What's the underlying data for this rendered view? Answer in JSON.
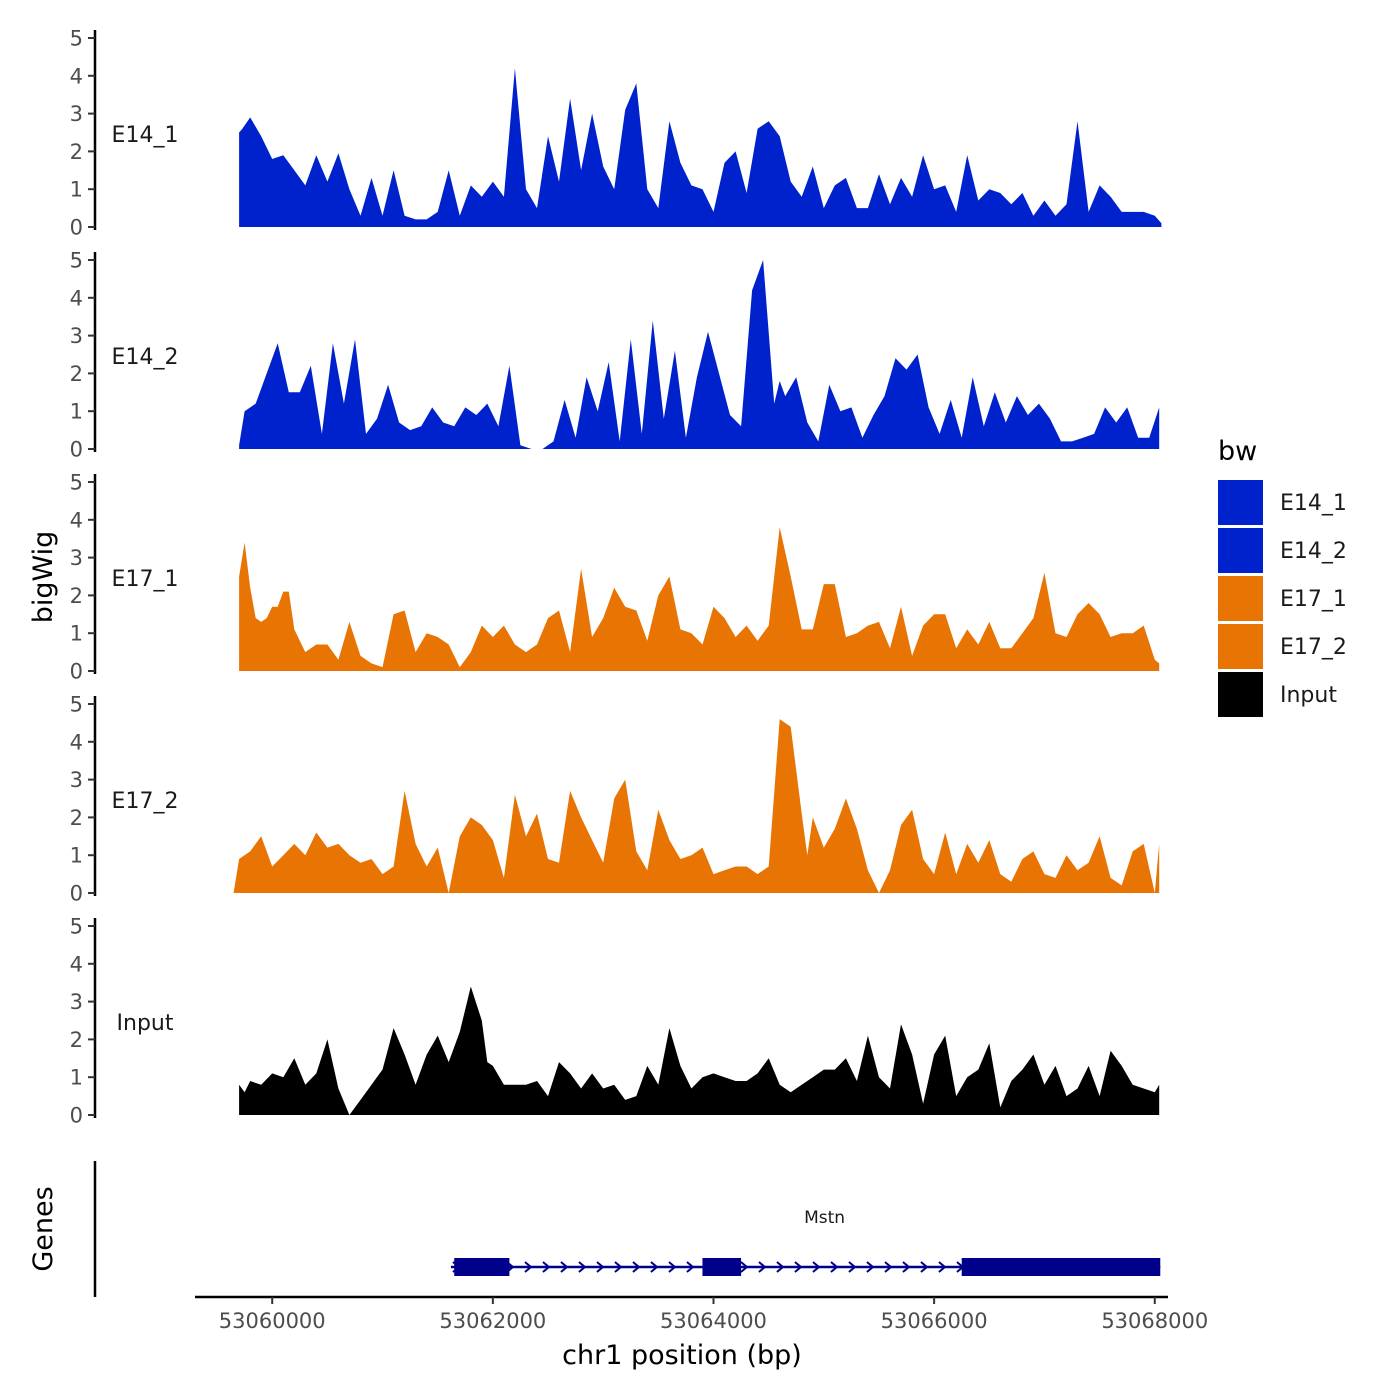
{
  "chart_data": {
    "type": "area",
    "panel_label": "bigWig",
    "gene_panel_label": "Genes",
    "xlabel": "chr1 position (bp)",
    "xlim": [
      53059300,
      53068120
    ],
    "x_ticks": [
      53060000,
      53062000,
      53064000,
      53066000,
      53068000
    ],
    "x_tick_labels": [
      "53060000",
      "53062000",
      "53064000",
      "53066000",
      "53068000"
    ],
    "ylim": [
      0,
      5
    ],
    "y_ticks": [
      0,
      1,
      2,
      3,
      4,
      5
    ],
    "y_tick_labels": [
      "0",
      "1",
      "2",
      "3",
      "4",
      "5"
    ],
    "legend": {
      "title": "bw",
      "entries": [
        {
          "label": "E14_1",
          "color": "#0022CC"
        },
        {
          "label": "E14_2",
          "color": "#0022CC"
        },
        {
          "label": "E17_1",
          "color": "#E87404"
        },
        {
          "label": "E17_2",
          "color": "#E87404"
        },
        {
          "label": "Input",
          "color": "#000000"
        }
      ]
    },
    "series": [
      {
        "name": "E14_1",
        "color": "#0022CC",
        "x": [
          53059700,
          53059730,
          53059800,
          53059900,
          53060000,
          53060100,
          53060200,
          53060300,
          53060400,
          53060500,
          53060600,
          53060700,
          53060800,
          53060900,
          53061000,
          53061100,
          53061200,
          53061300,
          53061400,
          53061500,
          53061600,
          53061700,
          53061800,
          53061900,
          53062000,
          53062100,
          53062200,
          53062300,
          53062400,
          53062500,
          53062600,
          53062700,
          53062800,
          53062900,
          53063000,
          53063100,
          53063200,
          53063300,
          53063400,
          53063500,
          53063600,
          53063700,
          53063800,
          53063900,
          53064000,
          53064100,
          53064200,
          53064300,
          53064400,
          53064500,
          53064600,
          53064700,
          53064800,
          53064900,
          53065000,
          53065100,
          53065200,
          53065300,
          53065400,
          53065500,
          53065600,
          53065700,
          53065800,
          53065900,
          53066000,
          53066100,
          53066200,
          53066300,
          53066400,
          53066500,
          53066600,
          53066700,
          53066800,
          53066900,
          53067000,
          53067100,
          53067200,
          53067300,
          53067400,
          53067500,
          53067600,
          53067700,
          53067800,
          53067900,
          53068000,
          53068060
        ],
        "y": [
          2.5,
          2.6,
          2.9,
          2.4,
          1.8,
          1.9,
          1.5,
          1.1,
          1.9,
          1.2,
          1.95,
          1.0,
          0.3,
          1.3,
          0.3,
          1.5,
          0.3,
          0.2,
          0.2,
          0.4,
          1.5,
          0.3,
          1.1,
          0.8,
          1.2,
          0.8,
          4.2,
          1.0,
          0.5,
          2.4,
          1.2,
          3.4,
          1.5,
          3.0,
          1.6,
          1.0,
          3.1,
          3.8,
          1.0,
          0.5,
          2.8,
          1.7,
          1.1,
          1.0,
          0.4,
          1.7,
          2.0,
          0.9,
          2.6,
          2.8,
          2.4,
          1.2,
          0.8,
          1.6,
          0.5,
          1.1,
          1.3,
          0.5,
          0.5,
          1.4,
          0.6,
          1.3,
          0.8,
          1.9,
          1.0,
          1.1,
          0.4,
          1.9,
          0.7,
          1.0,
          0.9,
          0.6,
          0.9,
          0.3,
          0.7,
          0.3,
          0.6,
          2.8,
          0.4,
          1.1,
          0.8,
          0.4,
          0.4,
          0.4,
          0.3,
          0.1
        ]
      },
      {
        "name": "E14_2",
        "color": "#0022CC",
        "x": [
          53059700,
          53059750,
          53059850,
          53059950,
          53060050,
          53060150,
          53060250,
          53060350,
          53060450,
          53060550,
          53060650,
          53060750,
          53060850,
          53060950,
          53061050,
          53061150,
          53061250,
          53061350,
          53061450,
          53061550,
          53061650,
          53061750,
          53061850,
          53061950,
          53062050,
          53062150,
          53062250,
          53062350,
          53062450,
          53062550,
          53062650,
          53062750,
          53062850,
          53062950,
          53063050,
          53063150,
          53063250,
          53063350,
          53063450,
          53063550,
          53063650,
          53063750,
          53063850,
          53063950,
          53064050,
          53064150,
          53064250,
          53064350,
          53064450,
          53064550,
          53064600,
          53064650,
          53064750,
          53064850,
          53064950,
          53065050,
          53065150,
          53065250,
          53065350,
          53065450,
          53065550,
          53065650,
          53065750,
          53065850,
          53065950,
          53066050,
          53066150,
          53066250,
          53066350,
          53066450,
          53066550,
          53066650,
          53066750,
          53066850,
          53066950,
          53067050,
          53067150,
          53067250,
          53067350,
          53067450,
          53067550,
          53067650,
          53067750,
          53067850,
          53067950,
          53068040
        ],
        "y": [
          0.1,
          1.0,
          1.2,
          2.0,
          2.8,
          1.5,
          1.5,
          2.2,
          0.4,
          2.8,
          1.2,
          2.9,
          0.4,
          0.8,
          1.7,
          0.7,
          0.5,
          0.6,
          1.1,
          0.7,
          0.6,
          1.1,
          0.9,
          1.2,
          0.6,
          2.2,
          0.1,
          0.0,
          0.0,
          0.2,
          1.3,
          0.3,
          1.9,
          1.0,
          2.3,
          0.2,
          2.9,
          0.4,
          3.4,
          0.8,
          2.6,
          0.3,
          1.9,
          3.1,
          2.0,
          0.9,
          0.6,
          4.2,
          5.0,
          1.2,
          1.8,
          1.4,
          1.9,
          0.7,
          0.2,
          1.7,
          1.0,
          1.1,
          0.3,
          0.9,
          1.4,
          2.4,
          2.1,
          2.5,
          1.1,
          0.4,
          1.3,
          0.3,
          1.9,
          0.6,
          1.5,
          0.7,
          1.4,
          0.9,
          1.2,
          0.8,
          0.2,
          0.2,
          0.3,
          0.4,
          1.1,
          0.7,
          1.1,
          0.3,
          0.3,
          1.1
        ]
      },
      {
        "name": "E17_1",
        "color": "#E87404",
        "x": [
          53059700,
          53059750,
          53059800,
          53059850,
          53059900,
          53059950,
          53060000,
          53060050,
          53060100,
          53060150,
          53060200,
          53060300,
          53060400,
          53060500,
          53060600,
          53060700,
          53060800,
          53060900,
          53061000,
          53061100,
          53061200,
          53061300,
          53061400,
          53061500,
          53061600,
          53061700,
          53061800,
          53061900,
          53062000,
          53062100,
          53062200,
          53062300,
          53062400,
          53062500,
          53062600,
          53062700,
          53062800,
          53062900,
          53063000,
          53063100,
          53063200,
          53063300,
          53063400,
          53063500,
          53063600,
          53063700,
          53063800,
          53063900,
          53064000,
          53064100,
          53064200,
          53064300,
          53064400,
          53064500,
          53064600,
          53064700,
          53064800,
          53064900,
          53065000,
          53065100,
          53065200,
          53065300,
          53065400,
          53065500,
          53065600,
          53065700,
          53065800,
          53065900,
          53066000,
          53066100,
          53066200,
          53066300,
          53066400,
          53066500,
          53066600,
          53066700,
          53066800,
          53066900,
          53067000,
          53067100,
          53067200,
          53067300,
          53067400,
          53067500,
          53067600,
          53067700,
          53067800,
          53067900,
          53068000,
          53068040
        ],
        "y": [
          2.5,
          3.4,
          2.2,
          1.4,
          1.3,
          1.4,
          1.7,
          1.7,
          2.1,
          2.1,
          1.1,
          0.5,
          0.7,
          0.7,
          0.3,
          1.3,
          0.4,
          0.2,
          0.1,
          1.5,
          1.6,
          0.5,
          1.0,
          0.9,
          0.7,
          0.1,
          0.5,
          1.2,
          0.9,
          1.2,
          0.7,
          0.5,
          0.7,
          1.4,
          1.6,
          0.5,
          2.7,
          0.9,
          1.4,
          2.2,
          1.7,
          1.6,
          0.8,
          2.0,
          2.5,
          1.1,
          1.0,
          0.7,
          1.7,
          1.4,
          0.9,
          1.2,
          0.8,
          1.2,
          3.8,
          2.5,
          1.1,
          1.1,
          2.3,
          2.3,
          0.9,
          1.0,
          1.2,
          1.3,
          0.6,
          1.7,
          0.4,
          1.2,
          1.5,
          1.5,
          0.6,
          1.1,
          0.7,
          1.3,
          0.6,
          0.6,
          1.0,
          1.4,
          2.6,
          1.0,
          0.9,
          1.5,
          1.8,
          1.5,
          0.9,
          1.0,
          1.0,
          1.2,
          0.3,
          0.2
        ]
      },
      {
        "name": "E17_2",
        "color": "#E87404",
        "x": [
          53059650,
          53059700,
          53059800,
          53059900,
          53060000,
          53060100,
          53060200,
          53060300,
          53060400,
          53060500,
          53060600,
          53060700,
          53060800,
          53060900,
          53061000,
          53061100,
          53061200,
          53061300,
          53061400,
          53061500,
          53061600,
          53061700,
          53061800,
          53061900,
          53062000,
          53062100,
          53062200,
          53062300,
          53062400,
          53062500,
          53062600,
          53062700,
          53062800,
          53062900,
          53063000,
          53063100,
          53063200,
          53063300,
          53063400,
          53063500,
          53063600,
          53063700,
          53063800,
          53063900,
          53064000,
          53064100,
          53064200,
          53064300,
          53064400,
          53064500,
          53064600,
          53064700,
          53064800,
          53064850,
          53064900,
          53065000,
          53065100,
          53065200,
          53065300,
          53065400,
          53065500,
          53065600,
          53065700,
          53065800,
          53065900,
          53066000,
          53066100,
          53066200,
          53066300,
          53066400,
          53066500,
          53066600,
          53066700,
          53066800,
          53066900,
          53067000,
          53067100,
          53067200,
          53067300,
          53067400,
          53067500,
          53067600,
          53067700,
          53067800,
          53067900,
          53068000,
          53068040
        ],
        "y": [
          0.0,
          0.9,
          1.1,
          1.5,
          0.7,
          1.0,
          1.3,
          1.0,
          1.6,
          1.2,
          1.3,
          1.0,
          0.8,
          0.9,
          0.5,
          0.7,
          2.7,
          1.3,
          0.7,
          1.2,
          0.0,
          1.5,
          2.0,
          1.8,
          1.4,
          0.4,
          2.6,
          1.5,
          2.1,
          0.9,
          0.8,
          2.7,
          2.0,
          1.4,
          0.8,
          2.5,
          3.0,
          1.1,
          0.6,
          2.2,
          1.4,
          0.9,
          1.0,
          1.2,
          0.5,
          0.6,
          0.7,
          0.7,
          0.5,
          0.7,
          4.6,
          4.4,
          2.1,
          1.0,
          2.0,
          1.2,
          1.7,
          2.5,
          1.7,
          0.6,
          0.0,
          0.6,
          1.8,
          2.2,
          0.9,
          0.5,
          1.6,
          0.5,
          1.3,
          0.8,
          1.4,
          0.5,
          0.3,
          0.9,
          1.1,
          0.5,
          0.4,
          1.0,
          0.6,
          0.8,
          1.5,
          0.4,
          0.2,
          1.1,
          1.3,
          0.0,
          1.3
        ]
      },
      {
        "name": "Input",
        "color": "#000000",
        "x": [
          53059700,
          53059750,
          53059800,
          53059900,
          53060000,
          53060100,
          53060200,
          53060300,
          53060400,
          53060500,
          53060600,
          53060700,
          53060800,
          53060900,
          53061000,
          53061100,
          53061200,
          53061300,
          53061400,
          53061500,
          53061600,
          53061700,
          53061800,
          53061900,
          53061950,
          53062000,
          53062100,
          53062200,
          53062300,
          53062400,
          53062500,
          53062600,
          53062700,
          53062800,
          53062900,
          53063000,
          53063100,
          53063200,
          53063300,
          53063400,
          53063500,
          53063600,
          53063700,
          53063800,
          53063900,
          53064000,
          53064100,
          53064200,
          53064300,
          53064400,
          53064500,
          53064600,
          53064700,
          53064800,
          53064900,
          53065000,
          53065100,
          53065200,
          53065300,
          53065400,
          53065500,
          53065600,
          53065700,
          53065800,
          53065900,
          53066000,
          53066100,
          53066200,
          53066300,
          53066400,
          53066500,
          53066600,
          53066700,
          53066800,
          53066900,
          53067000,
          53067100,
          53067200,
          53067300,
          53067400,
          53067500,
          53067600,
          53067700,
          53067800,
          53067900,
          53068000,
          53068040
        ],
        "y": [
          0.8,
          0.6,
          0.9,
          0.8,
          1.1,
          1.0,
          1.5,
          0.8,
          1.1,
          2.0,
          0.7,
          0.0,
          0.4,
          0.8,
          1.2,
          2.3,
          1.6,
          0.8,
          1.6,
          2.1,
          1.4,
          2.2,
          3.4,
          2.5,
          1.4,
          1.3,
          0.8,
          0.8,
          0.8,
          0.9,
          0.5,
          1.4,
          1.1,
          0.7,
          1.1,
          0.7,
          0.8,
          0.4,
          0.5,
          1.3,
          0.8,
          2.3,
          1.3,
          0.7,
          1.0,
          1.1,
          1.0,
          0.9,
          0.9,
          1.1,
          1.5,
          0.8,
          0.6,
          0.8,
          1.0,
          1.2,
          1.2,
          1.5,
          0.9,
          2.1,
          1.0,
          0.7,
          2.4,
          1.6,
          0.3,
          1.6,
          2.1,
          0.5,
          1.0,
          1.2,
          1.9,
          0.2,
          0.9,
          1.2,
          1.6,
          0.8,
          1.3,
          0.5,
          0.7,
          1.3,
          0.5,
          1.7,
          1.3,
          0.8,
          0.7,
          0.6,
          0.8
        ]
      }
    ],
    "gene": {
      "name": "Mstn",
      "color": "#00008B",
      "strand": "+",
      "start": 53061620,
      "end": 53068050,
      "exons": [
        [
          53061650,
          53062150
        ],
        [
          53063900,
          53064250
        ],
        [
          53066250,
          53068050
        ]
      ]
    }
  }
}
